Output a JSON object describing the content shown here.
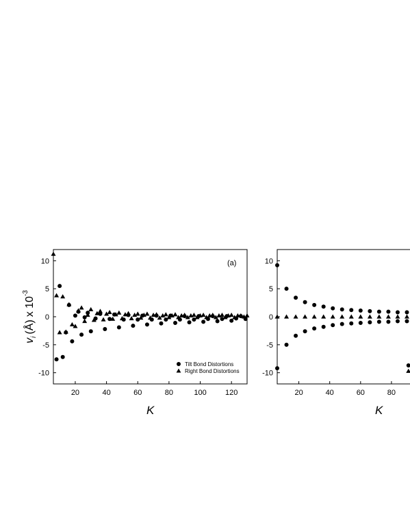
{
  "chart_data": [
    {
      "type": "scatter",
      "panel_label": "(a)",
      "xlabel": "K",
      "ylabel": {
        "main": "v",
        "sub": "i",
        "paren_unit": "(Å)",
        "times": "x 10",
        "exponent": "-3"
      },
      "xlim": [
        6,
        130
      ],
      "ylim": [
        -12,
        12
      ],
      "xticks": [
        20,
        40,
        60,
        80,
        100,
        120
      ],
      "yticks": [
        10,
        5,
        0,
        -5,
        -10
      ],
      "grid": false,
      "legend_position": "bottom-right",
      "series": [
        {
          "name": "Tilt Bond Distortions",
          "marker": "circle",
          "points": [
            [
              8,
              -7.6
            ],
            [
              10,
              5.5
            ],
            [
              12,
              -7.2
            ],
            [
              14,
              -2.8
            ],
            [
              16,
              2.1
            ],
            [
              18,
              -4.4
            ],
            [
              20,
              0.2
            ],
            [
              22,
              0.9
            ],
            [
              24,
              -3.2
            ],
            [
              26,
              -0.1
            ],
            [
              28,
              0.7
            ],
            [
              30,
              -2.6
            ],
            [
              33,
              -0.3
            ],
            [
              36,
              0.5
            ],
            [
              39,
              -2.2
            ],
            [
              42,
              -0.4
            ],
            [
              45,
              0.4
            ],
            [
              48,
              -1.9
            ],
            [
              51,
              -0.5
            ],
            [
              54,
              0.3
            ],
            [
              57,
              -1.6
            ],
            [
              60,
              -0.5
            ],
            [
              63,
              0.2
            ],
            [
              66,
              -1.4
            ],
            [
              69,
              -0.5
            ],
            [
              72,
              0.2
            ],
            [
              75,
              -1.2
            ],
            [
              78,
              -0.5
            ],
            [
              81,
              0.2
            ],
            [
              84,
              -1.1
            ],
            [
              87,
              -0.5
            ],
            [
              90,
              0.1
            ],
            [
              93,
              -1.0
            ],
            [
              96,
              -0.5
            ],
            [
              99,
              0.1
            ],
            [
              102,
              -0.9
            ],
            [
              105,
              -0.4
            ],
            [
              108,
              0.1
            ],
            [
              111,
              -0.8
            ],
            [
              114,
              -0.4
            ],
            [
              117,
              0.1
            ],
            [
              120,
              -0.7
            ],
            [
              123,
              -0.3
            ],
            [
              126,
              0.1
            ],
            [
              129,
              -0.4
            ]
          ]
        },
        {
          "name": "Right Bond Distortions",
          "marker": "triangle",
          "points": [
            [
              6,
              11.2
            ],
            [
              8,
              3.8
            ],
            [
              10,
              -2.8
            ],
            [
              12,
              3.6
            ],
            [
              14,
              -2.7
            ],
            [
              16,
              2.2
            ],
            [
              18,
              -1.4
            ],
            [
              20,
              -1.7
            ],
            [
              22,
              1.1
            ],
            [
              24,
              1.6
            ],
            [
              26,
              -0.8
            ],
            [
              28,
              0.3
            ],
            [
              30,
              1.3
            ],
            [
              32,
              -0.6
            ],
            [
              34,
              0.6
            ],
            [
              36,
              1.0
            ],
            [
              38,
              -0.5
            ],
            [
              40,
              0.5
            ],
            [
              42,
              0.8
            ],
            [
              44,
              -0.4
            ],
            [
              46,
              0.4
            ],
            [
              48,
              0.7
            ],
            [
              50,
              -0.3
            ],
            [
              52,
              0.4
            ],
            [
              54,
              0.6
            ],
            [
              56,
              -0.3
            ],
            [
              58,
              0.3
            ],
            [
              60,
              0.5
            ],
            [
              62,
              -0.2
            ],
            [
              64,
              0.3
            ],
            [
              66,
              0.5
            ],
            [
              68,
              -0.2
            ],
            [
              70,
              0.3
            ],
            [
              72,
              0.4
            ],
            [
              74,
              -0.2
            ],
            [
              76,
              0.2
            ],
            [
              78,
              0.4
            ],
            [
              80,
              -0.1
            ],
            [
              82,
              0.2
            ],
            [
              84,
              0.4
            ],
            [
              86,
              -0.1
            ],
            [
              88,
              0.2
            ],
            [
              90,
              0.3
            ],
            [
              92,
              -0.1
            ],
            [
              94,
              0.2
            ],
            [
              96,
              0.3
            ],
            [
              98,
              -0.1
            ],
            [
              100,
              0.2
            ],
            [
              102,
              0.3
            ],
            [
              104,
              -0.1
            ],
            [
              106,
              0.2
            ],
            [
              108,
              0.3
            ],
            [
              110,
              -0.1
            ],
            [
              112,
              0.2
            ],
            [
              114,
              0.3
            ],
            [
              116,
              -0.1
            ],
            [
              118,
              0.2
            ],
            [
              120,
              0.3
            ],
            [
              122,
              -0.1
            ],
            [
              124,
              0.2
            ],
            [
              126,
              0.2
            ],
            [
              128,
              0.0
            ],
            [
              130,
              0.2
            ]
          ]
        }
      ]
    },
    {
      "type": "scatter",
      "xlabel": "K",
      "xlim": [
        6,
        92
      ],
      "ylim": [
        -12,
        12
      ],
      "xticks": [
        20,
        40,
        60,
        80
      ],
      "yticks": [
        10,
        5,
        0,
        -5,
        -10
      ],
      "grid": false,
      "series": [
        {
          "marker": "circle",
          "points": [
            [
              6,
              9.2
            ],
            [
              6,
              -9.2
            ],
            [
              12,
              5.0
            ],
            [
              12,
              -5.0
            ],
            [
              18,
              3.4
            ],
            [
              18,
              -3.4
            ],
            [
              24,
              2.6
            ],
            [
              24,
              -2.6
            ],
            [
              30,
              2.1
            ],
            [
              30,
              -2.1
            ],
            [
              36,
              1.8
            ],
            [
              36,
              -1.8
            ],
            [
              42,
              1.5
            ],
            [
              42,
              -1.5
            ],
            [
              48,
              1.3
            ],
            [
              48,
              -1.3
            ],
            [
              54,
              1.2
            ],
            [
              54,
              -1.2
            ],
            [
              60,
              1.1
            ],
            [
              60,
              -1.1
            ],
            [
              66,
              1.0
            ],
            [
              66,
              -1.0
            ],
            [
              72,
              0.9
            ],
            [
              72,
              -0.9
            ],
            [
              78,
              0.9
            ],
            [
              78,
              -0.9
            ],
            [
              84,
              0.8
            ],
            [
              84,
              -0.8
            ],
            [
              90,
              0.8
            ],
            [
              90,
              -0.8
            ],
            [
              91,
              -8.7
            ]
          ]
        },
        {
          "marker": "triangle",
          "points": [
            [
              6,
              0
            ],
            [
              12,
              0
            ],
            [
              18,
              0
            ],
            [
              24,
              0
            ],
            [
              30,
              0
            ],
            [
              36,
              0
            ],
            [
              42,
              0
            ],
            [
              48,
              0
            ],
            [
              54,
              0
            ],
            [
              60,
              0
            ],
            [
              66,
              0
            ],
            [
              72,
              0
            ],
            [
              78,
              0
            ],
            [
              84,
              0
            ],
            [
              90,
              0
            ],
            [
              91,
              -9.7
            ]
          ]
        }
      ]
    }
  ]
}
